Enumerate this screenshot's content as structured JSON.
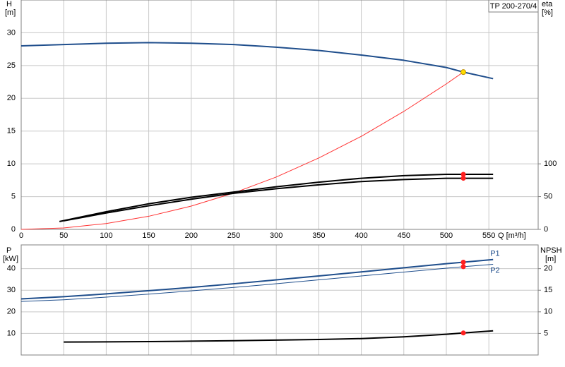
{
  "chart_data": [
    {
      "type": "line",
      "legend_box": "TP 200-270/4",
      "y_label": "H",
      "y_unit": "[m]",
      "y2_label": "eta",
      "y2_unit": "[%]",
      "x_label": "Q [m³/h]",
      "xlim": [
        0,
        608
      ],
      "xticks": [
        0,
        50,
        100,
        150,
        200,
        250,
        300,
        350,
        400,
        450,
        500,
        550
      ],
      "ylim": [
        0,
        35
      ],
      "yticks": [
        0,
        5,
        10,
        15,
        20,
        25,
        30
      ],
      "y2lim": [
        0,
        350
      ],
      "y2ticks": [
        0,
        50,
        100
      ],
      "grid": true,
      "marker_x": 520,
      "series": [
        {
          "color": "#1f4e8c",
          "line_width": 2,
          "marker_color": "#ffdd00",
          "x": [
            0,
            50,
            100,
            150,
            200,
            250,
            300,
            350,
            400,
            450,
            500,
            520,
            555
          ],
          "values": [
            28,
            28.2,
            28.4,
            28.5,
            28.4,
            28.2,
            27.8,
            27.3,
            26.6,
            25.8,
            24.7,
            24,
            23
          ]
        },
        {
          "color": "#ff3333",
          "line_width": 1,
          "x": [
            0,
            50,
            100,
            150,
            200,
            250,
            300,
            350,
            400,
            450,
            500,
            520
          ],
          "values": [
            0,
            0.22,
            0.89,
            2,
            3.55,
            5.55,
            7.99,
            10.9,
            14.2,
            18,
            22.2,
            24
          ]
        },
        {
          "color": "#000000",
          "line_width": 2,
          "axis": "y2",
          "marker_color": "#ff2020",
          "x": [
            45,
            100,
            150,
            200,
            250,
            300,
            350,
            400,
            450,
            500,
            520,
            555
          ],
          "values": [
            12,
            27,
            39,
            49,
            57,
            65,
            72,
            78,
            82,
            84,
            84,
            84
          ]
        },
        {
          "color": "#000000",
          "line_width": 2,
          "axis": "y2",
          "marker_color": "#ff2020",
          "x": [
            50,
            100,
            150,
            200,
            250,
            300,
            350,
            400,
            450,
            500,
            520,
            555
          ],
          "values": [
            13,
            25,
            36,
            46,
            55,
            62,
            68,
            73,
            76,
            78,
            78,
            78
          ]
        }
      ]
    },
    {
      "type": "line",
      "y_label": "P",
      "y_unit": "[kW]",
      "y2_label": "NPSH",
      "y2_unit": "[m]",
      "xlim": [
        0,
        608
      ],
      "xticks": [
        0,
        50,
        100,
        150,
        200,
        250,
        300,
        350,
        400,
        450,
        500,
        550
      ],
      "ylim": [
        0,
        51
      ],
      "yticks": [
        10,
        20,
        30,
        40
      ],
      "y2lim": [
        0,
        25.5
      ],
      "y2ticks": [
        5,
        10,
        15,
        20
      ],
      "grid": true,
      "marker_x": 520,
      "series": [
        {
          "name": "P1",
          "color": "#1f4e8c",
          "line_width": 2,
          "marker_color": "#ff2020",
          "x": [
            0,
            50,
            100,
            150,
            200,
            250,
            300,
            350,
            400,
            450,
            500,
            520,
            555
          ],
          "values": [
            26,
            27,
            28.3,
            29.8,
            31.3,
            33,
            34.8,
            36.6,
            38.5,
            40.4,
            42.3,
            43,
            44.2
          ]
        },
        {
          "name": "P2",
          "color": "#1f4e8c",
          "line_width": 1,
          "marker_color": "#ff2020",
          "x": [
            0,
            50,
            100,
            150,
            200,
            250,
            300,
            350,
            400,
            450,
            500,
            520,
            555
          ],
          "values": [
            24.8,
            25.6,
            26.8,
            28.2,
            29.7,
            31.3,
            33,
            34.8,
            36.6,
            38.4,
            40.2,
            40.9,
            42
          ]
        },
        {
          "color": "#000000",
          "line_width": 2,
          "axis": "y2",
          "marker_color": "#ff2020",
          "x": [
            50,
            100,
            150,
            200,
            250,
            300,
            350,
            400,
            450,
            500,
            520,
            555
          ],
          "values": [
            3,
            3.05,
            3.1,
            3.2,
            3.3,
            3.45,
            3.6,
            3.8,
            4.2,
            4.8,
            5.1,
            5.6
          ]
        }
      ]
    }
  ]
}
